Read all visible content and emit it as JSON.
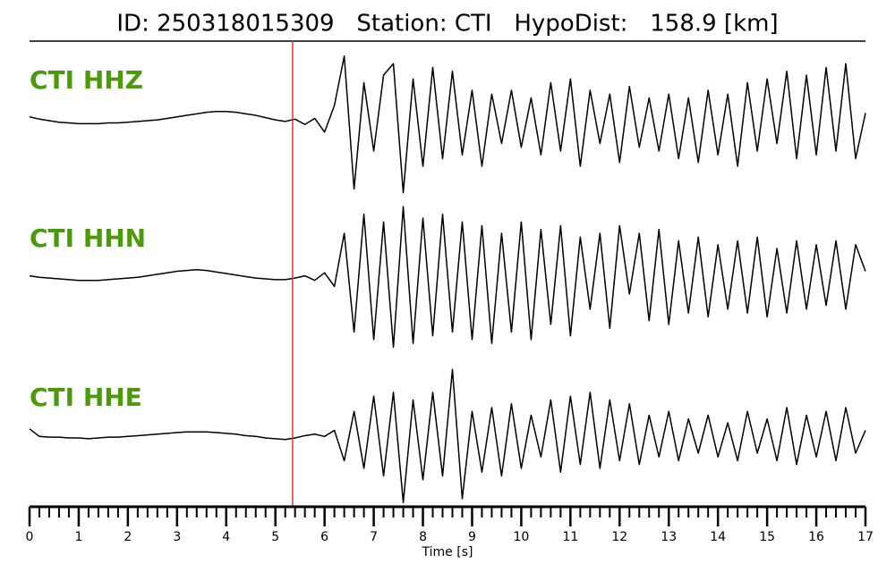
{
  "chart_data": {
    "type": "line",
    "title": "ID: 250318015309   Station: CTI   HypoDist:   158.9 [km]",
    "xlabel": "Time [s]",
    "xlim": [
      0,
      17
    ],
    "xticks": [
      0,
      1,
      2,
      3,
      4,
      5,
      6,
      7,
      8,
      9,
      10,
      11,
      12,
      13,
      14,
      15,
      16,
      17
    ],
    "minor_xtick_step": 0.2,
    "ylim": [
      -1,
      1
    ],
    "label_color": "#4a9a0a",
    "pick": {
      "x": 5.35,
      "color": "#e8312b"
    },
    "x": [
      0,
      0.2,
      0.4,
      0.6,
      0.8,
      1,
      1.2,
      1.4,
      1.6,
      1.8,
      2,
      2.2,
      2.4,
      2.6,
      2.8,
      3,
      3.2,
      3.4,
      3.6,
      3.8,
      4,
      4.2,
      4.4,
      4.6,
      4.8,
      5,
      5.2,
      5.4,
      5.6,
      5.8,
      6,
      6.2,
      6.4,
      6.6,
      6.8,
      7,
      7.2,
      7.4,
      7.6,
      7.8,
      8,
      8.2,
      8.4,
      8.6,
      8.8,
      9,
      9.2,
      9.4,
      9.6,
      9.8,
      10,
      10.2,
      10.4,
      10.6,
      10.8,
      11,
      11.2,
      11.4,
      11.6,
      11.8,
      12,
      12.2,
      12.4,
      12.6,
      12.8,
      13,
      13.2,
      13.4,
      13.6,
      13.8,
      14,
      14.2,
      14.4,
      14.6,
      14.8,
      15,
      15.2,
      15.4,
      15.6,
      15.8,
      16,
      16.2,
      16.4,
      16.6,
      16.8,
      17
    ],
    "series": [
      {
        "name": "CTI HHZ",
        "color": "#000000",
        "values": [
          0.05,
          0.02,
          0,
          -0.02,
          -0.03,
          -0.04,
          -0.04,
          -0.04,
          -0.03,
          -0.03,
          -0.02,
          -0.01,
          0,
          0.01,
          0.03,
          0.05,
          0.07,
          0.09,
          0.11,
          0.12,
          0.12,
          0.11,
          0.09,
          0.07,
          0.04,
          0.01,
          -0.01,
          0.02,
          -0.05,
          0.03,
          -0.15,
          0.2,
          0.85,
          -0.9,
          0.5,
          -0.4,
          0.6,
          0.75,
          -0.95,
          0.55,
          -0.6,
          0.7,
          -0.5,
          0.65,
          -0.45,
          0.4,
          -0.6,
          0.35,
          -0.3,
          0.4,
          -0.35,
          0.3,
          -0.45,
          0.5,
          -0.4,
          0.55,
          -0.6,
          0.4,
          -0.3,
          0.35,
          -0.55,
          0.45,
          -0.35,
          0.3,
          -0.4,
          0.35,
          -0.5,
          0.3,
          -0.55,
          0.4,
          -0.45,
          0.35,
          -0.6,
          0.5,
          -0.4,
          0.55,
          -0.3,
          0.65,
          -0.5,
          0.6,
          -0.45,
          0.7,
          -0.4,
          0.75,
          -0.5,
          0.1
        ]
      },
      {
        "name": "CTI HHN",
        "color": "#000000",
        "values": [
          0.04,
          0.02,
          0.01,
          0,
          -0.01,
          -0.02,
          -0.02,
          -0.02,
          -0.01,
          0,
          0.01,
          0.02,
          0.04,
          0.06,
          0.08,
          0.1,
          0.11,
          0.12,
          0.11,
          0.09,
          0.07,
          0.05,
          0.03,
          0.01,
          0,
          -0.01,
          -0.01,
          0.01,
          0.04,
          -0.02,
          0.08,
          -0.1,
          0.6,
          -0.7,
          0.85,
          -0.8,
          0.75,
          -0.9,
          0.95,
          -0.85,
          0.8,
          -0.75,
          0.85,
          -0.7,
          0.75,
          -0.8,
          0.7,
          -0.85,
          0.6,
          -0.7,
          0.75,
          -0.8,
          0.65,
          -0.6,
          0.7,
          -0.75,
          0.55,
          -0.4,
          0.6,
          -0.65,
          0.7,
          -0.2,
          0.6,
          -0.55,
          0.65,
          -0.6,
          0.5,
          -0.45,
          0.55,
          -0.5,
          0.45,
          -0.4,
          0.5,
          -0.45,
          0.55,
          -0.5,
          0.4,
          -0.45,
          0.5,
          -0.4,
          0.45,
          -0.35,
          0.5,
          -0.4,
          0.45,
          0.1
        ]
      },
      {
        "name": "CTI HHE",
        "color": "#000000",
        "values": [
          0.12,
          0.02,
          0.01,
          0.01,
          0,
          0,
          -0.01,
          0,
          0.01,
          0.01,
          0.02,
          0.03,
          0.04,
          0.05,
          0.06,
          0.07,
          0.08,
          0.08,
          0.08,
          0.07,
          0.06,
          0.05,
          0.03,
          0.02,
          0,
          -0.01,
          -0.02,
          0,
          0.03,
          0.05,
          0.02,
          0.1,
          -0.3,
          0.35,
          -0.4,
          0.55,
          -0.5,
          0.6,
          -0.85,
          0.5,
          -0.55,
          0.6,
          -0.5,
          0.9,
          -0.8,
          0.35,
          -0.45,
          0.4,
          -0.5,
          0.45,
          -0.4,
          0.3,
          -0.25,
          0.5,
          -0.45,
          0.55,
          -0.35,
          0.6,
          -0.4,
          0.5,
          -0.3,
          0.45,
          -0.35,
          0.3,
          -0.25,
          0.35,
          -0.3,
          0.25,
          -0.2,
          0.3,
          -0.25,
          0.2,
          -0.3,
          0.35,
          -0.2,
          0.25,
          -0.3,
          0.4,
          -0.35,
          0.3,
          -0.25,
          0.35,
          -0.3,
          0.4,
          -0.2,
          0.1
        ]
      }
    ]
  }
}
